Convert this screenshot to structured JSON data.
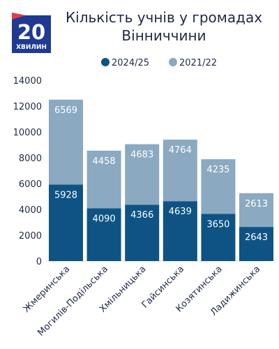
{
  "brand": {
    "logo_number": "20",
    "logo_word": "ХВИЛИН",
    "colors": {
      "logo_bg": "#1f3a93",
      "logo_accent": "#e63946"
    }
  },
  "title_lines": [
    "Кількість учнів у громадах",
    "Вінниччини"
  ],
  "chart_data": {
    "type": "bar",
    "stacked": true,
    "title": "Кількість учнів у громадах Вінниччини",
    "categories": [
      "Жмеринська",
      "Могилів-Подільська",
      "Хмільницька",
      "Гайсинська",
      "Козятинська",
      "Ладижинська"
    ],
    "series": [
      {
        "name": "2024/25",
        "color": "#0e5384",
        "values": [
          5928,
          4090,
          4366,
          4639,
          3650,
          2643
        ]
      },
      {
        "name": "2021/22",
        "color": "#8ba9c0",
        "values": [
          6569,
          4458,
          4683,
          4764,
          4235,
          2613
        ]
      }
    ],
    "ylim": [
      0,
      14000
    ],
    "yticks": [
      0,
      2000,
      4000,
      6000,
      8000,
      10000,
      12000,
      14000
    ],
    "legend_position": "top",
    "grid": false
  }
}
